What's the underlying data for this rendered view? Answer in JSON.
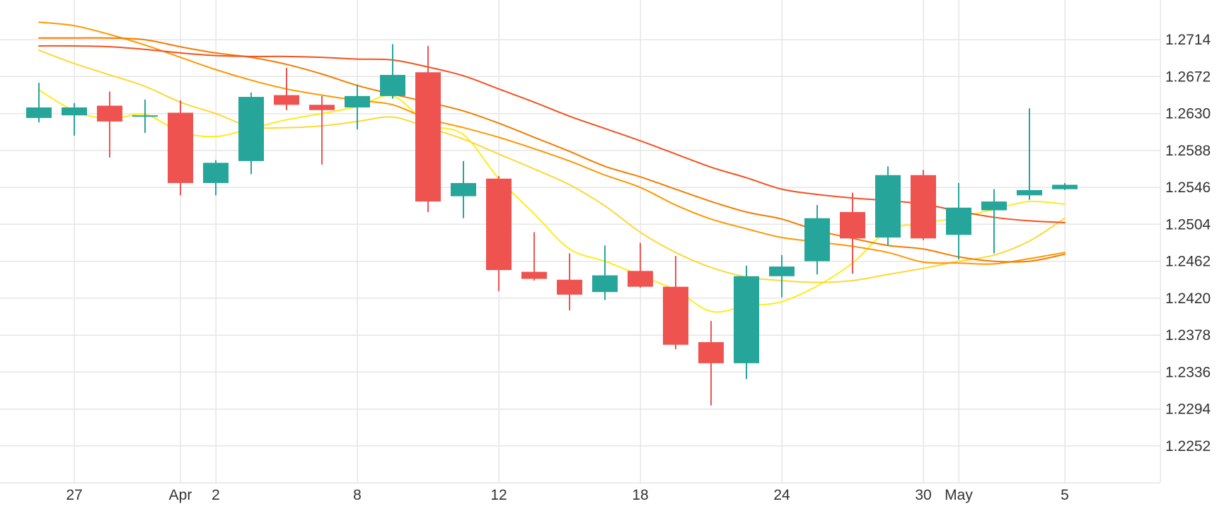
{
  "chart_data": {
    "type": "candlestick",
    "title": "",
    "xlabel": "",
    "ylabel": "",
    "ylim": [
      1.221,
      1.2756
    ],
    "grid": true,
    "y_axis_position": "right",
    "y_ticks": [
      1.2252,
      1.2294,
      1.2336,
      1.2378,
      1.242,
      1.2462,
      1.2504,
      1.2546,
      1.2588,
      1.263,
      1.2672,
      1.2714
    ],
    "y_tick_labels": [
      "1.2252",
      "1.2294",
      "1.2336",
      "1.2378",
      "1.2420",
      "1.2462",
      "1.2504",
      "1.2546",
      "1.2588",
      "1.2630",
      "1.2672",
      "1.2714"
    ],
    "x_ticks": [
      {
        "label": "27",
        "day": 3
      },
      {
        "label": "Apr",
        "day": 6
      },
      {
        "label": "2",
        "day": 7
      },
      {
        "label": "8",
        "day": 11
      },
      {
        "label": "12",
        "day": 15
      },
      {
        "label": "18",
        "day": 19
      },
      {
        "label": "24",
        "day": 23
      },
      {
        "label": "30",
        "day": 27
      },
      {
        "label": "May",
        "day": 28
      },
      {
        "label": "5",
        "day": 31
      }
    ],
    "x_range": [
      0.9,
      33.7
    ],
    "candles": [
      {
        "day": 2,
        "open": 1.2625,
        "high": 1.2665,
        "low": 1.262,
        "close": 1.2637
      },
      {
        "day": 3,
        "open": 1.2628,
        "high": 1.2642,
        "low": 1.2605,
        "close": 1.2637
      },
      {
        "day": 4,
        "open": 1.2639,
        "high": 1.2655,
        "low": 1.258,
        "close": 1.2621
      },
      {
        "day": 5,
        "open": 1.2628,
        "high": 1.2646,
        "low": 1.2608,
        "close": 1.2628
      },
      {
        "day": 6,
        "open": 1.2631,
        "high": 1.2645,
        "low": 1.2537,
        "close": 1.2551
      },
      {
        "day": 7,
        "open": 1.2551,
        "high": 1.2577,
        "low": 1.2537,
        "close": 1.2574
      },
      {
        "day": 8,
        "open": 1.2576,
        "high": 1.2654,
        "low": 1.2561,
        "close": 1.2649
      },
      {
        "day": 9,
        "open": 1.2651,
        "high": 1.2682,
        "low": 1.2634,
        "close": 1.264
      },
      {
        "day": 10,
        "open": 1.264,
        "high": 1.265,
        "low": 1.2572,
        "close": 1.2634
      },
      {
        "day": 11,
        "open": 1.2637,
        "high": 1.2663,
        "low": 1.2612,
        "close": 1.265
      },
      {
        "day": 12,
        "open": 1.265,
        "high": 1.2709,
        "low": 1.2647,
        "close": 1.2674
      },
      {
        "day": 13,
        "open": 1.2677,
        "high": 1.2707,
        "low": 1.2518,
        "close": 1.253
      },
      {
        "day": 14,
        "open": 1.2536,
        "high": 1.2576,
        "low": 1.2511,
        "close": 1.2551
      },
      {
        "day": 15,
        "open": 1.2556,
        "high": 1.2559,
        "low": 1.2428,
        "close": 1.2452
      },
      {
        "day": 16,
        "open": 1.245,
        "high": 1.2495,
        "low": 1.244,
        "close": 1.2442
      },
      {
        "day": 17,
        "open": 1.2441,
        "high": 1.2471,
        "low": 1.2406,
        "close": 1.2424
      },
      {
        "day": 18,
        "open": 1.2427,
        "high": 1.248,
        "low": 1.2418,
        "close": 1.2446
      },
      {
        "day": 19,
        "open": 1.2451,
        "high": 1.2483,
        "low": 1.2432,
        "close": 1.2433
      },
      {
        "day": 20,
        "open": 1.2433,
        "high": 1.2468,
        "low": 1.2362,
        "close": 1.2367
      },
      {
        "day": 21,
        "open": 1.237,
        "high": 1.2394,
        "low": 1.2298,
        "close": 1.2346
      },
      {
        "day": 22,
        "open": 1.2346,
        "high": 1.2457,
        "low": 1.2328,
        "close": 1.2445
      },
      {
        "day": 23,
        "open": 1.2445,
        "high": 1.2469,
        "low": 1.2421,
        "close": 1.2456
      },
      {
        "day": 24,
        "open": 1.2462,
        "high": 1.2526,
        "low": 1.2447,
        "close": 1.2511
      },
      {
        "day": 25,
        "open": 1.2518,
        "high": 1.254,
        "low": 1.2448,
        "close": 1.2488
      },
      {
        "day": 26,
        "open": 1.2489,
        "high": 1.257,
        "low": 1.248,
        "close": 1.256
      },
      {
        "day": 27,
        "open": 1.256,
        "high": 1.2566,
        "low": 1.2486,
        "close": 1.2488
      },
      {
        "day": 28,
        "open": 1.2492,
        "high": 1.2551,
        "low": 1.2464,
        "close": 1.2523
      },
      {
        "day": 29,
        "open": 1.252,
        "high": 1.2544,
        "low": 1.2471,
        "close": 1.253
      },
      {
        "day": 30,
        "open": 1.2537,
        "high": 1.2636,
        "low": 1.2532,
        "close": 1.2543
      },
      {
        "day": 31,
        "open": 1.2544,
        "high": 1.2551,
        "low": 1.2543,
        "close": 1.2549
      }
    ],
    "moving_averages": [
      {
        "color": "#ffec1a",
        "points": [
          [
            2,
            1.2657
          ],
          [
            3,
            1.2633
          ],
          [
            4,
            1.2624
          ],
          [
            5,
            1.2629
          ],
          [
            6,
            1.2609
          ],
          [
            7,
            1.2604
          ],
          [
            8,
            1.2613
          ],
          [
            9,
            1.2623
          ],
          [
            10,
            1.263
          ],
          [
            11,
            1.2638
          ],
          [
            12,
            1.265
          ],
          [
            13,
            1.2618
          ],
          [
            14,
            1.2606
          ],
          [
            15,
            1.2556
          ],
          [
            16,
            1.2516
          ],
          [
            17,
            1.2476
          ],
          [
            18,
            1.2462
          ],
          [
            19,
            1.2446
          ],
          [
            20,
            1.2429
          ],
          [
            21,
            1.2405
          ],
          [
            22,
            1.2411
          ],
          [
            23,
            1.2416
          ],
          [
            24,
            1.2434
          ],
          [
            25,
            1.246
          ],
          [
            26,
            1.2497
          ],
          [
            27,
            1.2505
          ],
          [
            28,
            1.2512
          ],
          [
            29,
            1.2521
          ],
          [
            30,
            1.253
          ],
          [
            31,
            1.2527
          ]
        ]
      },
      {
        "color": "#fdd835",
        "points": [
          [
            2,
            1.2702
          ],
          [
            3,
            1.2687
          ],
          [
            4,
            1.2674
          ],
          [
            5,
            1.2661
          ],
          [
            6,
            1.2643
          ],
          [
            7,
            1.263
          ],
          [
            8,
            1.2615
          ],
          [
            9,
            1.2614
          ],
          [
            10,
            1.2616
          ],
          [
            11,
            1.2621
          ],
          [
            12,
            1.2626
          ],
          [
            13,
            1.2614
          ],
          [
            14,
            1.2601
          ],
          [
            15,
            1.2584
          ],
          [
            16,
            1.2567
          ],
          [
            17,
            1.2549
          ],
          [
            18,
            1.2525
          ],
          [
            19,
            1.2495
          ],
          [
            20,
            1.2472
          ],
          [
            21,
            1.2455
          ],
          [
            22,
            1.2444
          ],
          [
            23,
            1.244
          ],
          [
            24,
            1.2438
          ],
          [
            25,
            1.244
          ],
          [
            26,
            1.2447
          ],
          [
            27,
            1.2454
          ],
          [
            28,
            1.2462
          ],
          [
            29,
            1.2469
          ],
          [
            30,
            1.2485
          ],
          [
            31,
            1.2511
          ]
        ]
      },
      {
        "color": "#ff9800",
        "points": [
          [
            2,
            1.2734
          ],
          [
            3,
            1.273
          ],
          [
            4,
            1.272
          ],
          [
            5,
            1.2708
          ],
          [
            6,
            1.2694
          ],
          [
            7,
            1.268
          ],
          [
            8,
            1.2668
          ],
          [
            9,
            1.2658
          ],
          [
            10,
            1.2651
          ],
          [
            11,
            1.2645
          ],
          [
            12,
            1.264
          ],
          [
            13,
            1.2624
          ],
          [
            14,
            1.2614
          ],
          [
            15,
            1.2603
          ],
          [
            16,
            1.259
          ],
          [
            17,
            1.2576
          ],
          [
            18,
            1.256
          ],
          [
            19,
            1.2546
          ],
          [
            20,
            1.2526
          ],
          [
            21,
            1.251
          ],
          [
            22,
            1.2499
          ],
          [
            23,
            1.2489
          ],
          [
            24,
            1.2484
          ],
          [
            25,
            1.2479
          ],
          [
            26,
            1.2472
          ],
          [
            27,
            1.2461
          ],
          [
            28,
            1.246
          ],
          [
            29,
            1.2459
          ],
          [
            30,
            1.2465
          ],
          [
            31,
            1.2472
          ]
        ]
      },
      {
        "color": "#f57c00",
        "points": [
          [
            2,
            1.2716
          ],
          [
            3,
            1.2716
          ],
          [
            4,
            1.2716
          ],
          [
            5,
            1.2714
          ],
          [
            6,
            1.2706
          ],
          [
            7,
            1.2699
          ],
          [
            8,
            1.2694
          ],
          [
            9,
            1.2686
          ],
          [
            10,
            1.2675
          ],
          [
            11,
            1.2662
          ],
          [
            12,
            1.2652
          ],
          [
            13,
            1.2643
          ],
          [
            14,
            1.2633
          ],
          [
            15,
            1.2619
          ],
          [
            16,
            1.2603
          ],
          [
            17,
            1.2587
          ],
          [
            18,
            1.257
          ],
          [
            19,
            1.2558
          ],
          [
            20,
            1.2544
          ],
          [
            21,
            1.253
          ],
          [
            22,
            1.2518
          ],
          [
            23,
            1.251
          ],
          [
            24,
            1.2497
          ],
          [
            25,
            1.2488
          ],
          [
            26,
            1.248
          ],
          [
            27,
            1.2476
          ],
          [
            28,
            1.2467
          ],
          [
            29,
            1.2462
          ],
          [
            30,
            1.2462
          ],
          [
            31,
            1.247
          ]
        ]
      },
      {
        "color": "#f4511e",
        "points": [
          [
            2,
            1.2707
          ],
          [
            3,
            1.2707
          ],
          [
            4,
            1.2706
          ],
          [
            5,
            1.2703
          ],
          [
            6,
            1.2699
          ],
          [
            7,
            1.2696
          ],
          [
            8,
            1.2695
          ],
          [
            9,
            1.2695
          ],
          [
            10,
            1.2694
          ],
          [
            11,
            1.2692
          ],
          [
            12,
            1.2691
          ],
          [
            13,
            1.2683
          ],
          [
            14,
            1.2673
          ],
          [
            15,
            1.2658
          ],
          [
            16,
            1.2643
          ],
          [
            17,
            1.2627
          ],
          [
            18,
            1.2613
          ],
          [
            19,
            1.2599
          ],
          [
            20,
            1.2584
          ],
          [
            21,
            1.2569
          ],
          [
            22,
            1.2557
          ],
          [
            23,
            1.2544
          ],
          [
            24,
            1.2538
          ],
          [
            25,
            1.2534
          ],
          [
            26,
            1.2531
          ],
          [
            27,
            1.2527
          ],
          [
            28,
            1.2519
          ],
          [
            29,
            1.2512
          ],
          [
            30,
            1.2508
          ],
          [
            31,
            1.2506
          ]
        ]
      }
    ],
    "colors": {
      "up": "#26a69a",
      "down": "#ef5350",
      "grid": "#e6e6e6",
      "text": "#333333"
    }
  }
}
